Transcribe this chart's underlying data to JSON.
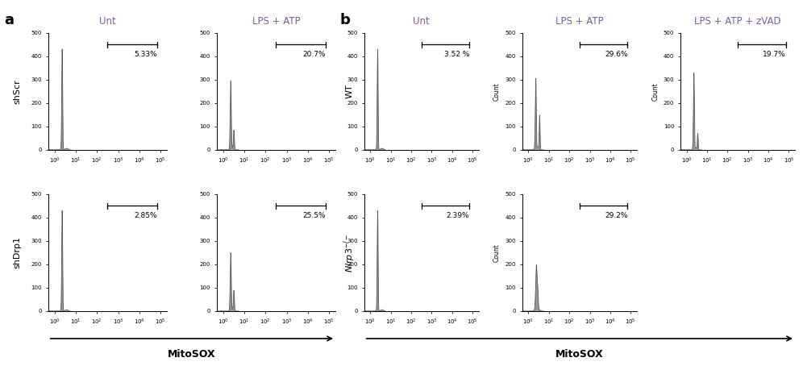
{
  "panel_a_label": "a",
  "panel_b_label": "b",
  "col_labels_a": [
    "Unt",
    "LPS + ATP"
  ],
  "col_labels_b": [
    "Unt",
    "LPS + ATP",
    "LPS + ATP + zVAD"
  ],
  "row_labels_a": [
    "shScr",
    "shDrp1"
  ],
  "row_labels_b": [
    "WT",
    "Nlrp3−/−"
  ],
  "xlabel": "MitoSOX",
  "ylabel": "Count",
  "col_label_color": "#7B5EA7",
  "hist_fill_color": "#888888",
  "hist_edge_color": "#555555",
  "background_color": "#ffffff",
  "percentage_labels": {
    "a_shScr_Unt": "5.33%",
    "a_shScr_LPS": "20.7%",
    "a_shDrp1_Unt": "2.85%",
    "a_shDrp1_LPS": "25.5%",
    "b_WT_Unt": "3.52 %",
    "b_WT_LPS": "29.6%",
    "b_WT_zVAD": "19.7%",
    "b_Nlrp3_Unt": "2.39%",
    "b_Nlrp3_LPS": "29.2%"
  }
}
